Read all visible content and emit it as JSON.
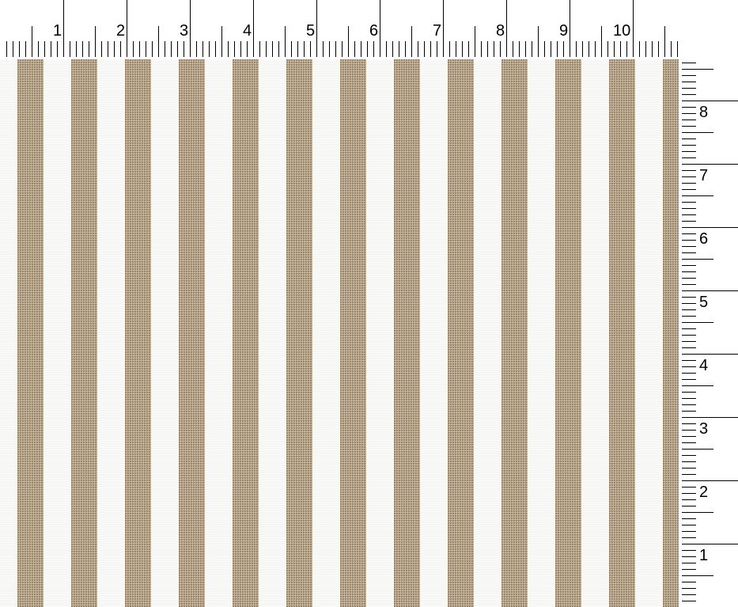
{
  "top_ruler": {
    "labels": [
      "1",
      "2",
      "3",
      "4",
      "5",
      "6",
      "7",
      "8",
      "9",
      "10"
    ],
    "unit": "inch"
  },
  "right_ruler": {
    "labels": [
      "8",
      "7",
      "6",
      "5",
      "4",
      "3",
      "2",
      "1"
    ],
    "unit": "inch"
  },
  "fabric": {
    "pattern": "vertical stripes",
    "stripe_color": "#b9a68b",
    "ground_color": "#f6f6f4"
  }
}
